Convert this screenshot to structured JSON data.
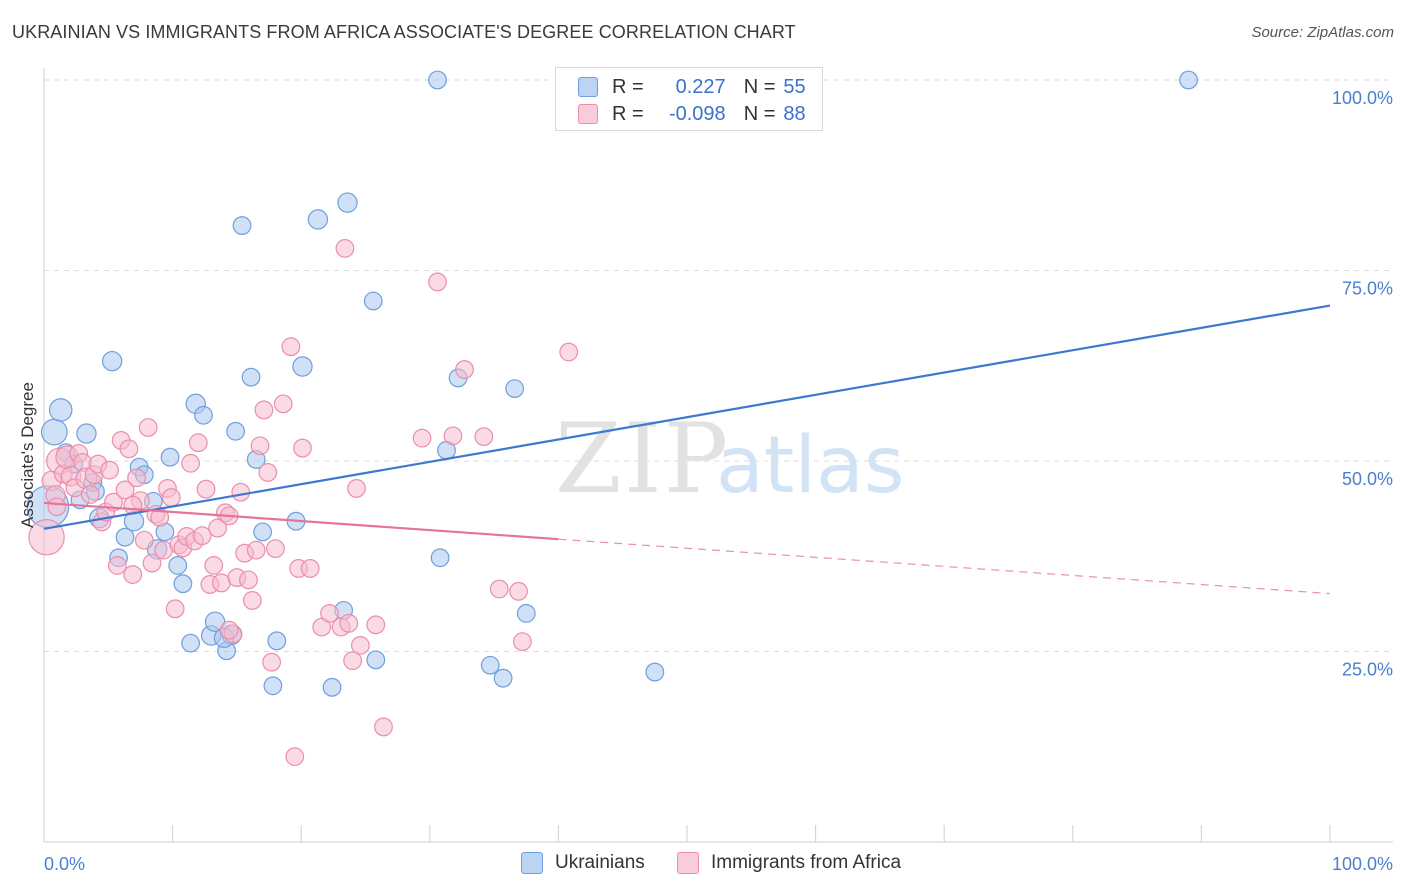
{
  "header": {
    "title": "UKRAINIAN VS IMMIGRANTS FROM AFRICA ASSOCIATE'S DEGREE CORRELATION CHART",
    "source": "Source: ZipAtlas.com"
  },
  "watermark": {
    "zip": "ZIP",
    "atlas": "atlas"
  },
  "colors": {
    "blue_fill": "#a9c7ee",
    "blue_stroke": "#6f9fdc",
    "blue_line": "#3d78cf",
    "pink_fill": "#f6bccd",
    "pink_stroke": "#ea8fab",
    "pink_line": "#e5739b",
    "axis_label": "#4a7fcf",
    "grid": "#dcdcdc"
  },
  "legend": {
    "r_label": "R =",
    "n_label": "N =",
    "rows": [
      {
        "r": "0.227",
        "n": "55"
      },
      {
        "r": "-0.098",
        "n": "88"
      }
    ]
  },
  "chart_data": {
    "type": "scatter",
    "title": "UKRAINIAN VS IMMIGRANTS FROM AFRICA ASSOCIATE'S DEGREE CORRELATION CHART",
    "xlabel": "",
    "ylabel": "Associate's Degree",
    "xlim": [
      0,
      100
    ],
    "ylim": [
      0,
      100
    ],
    "x_tick_labels": [
      "0.0%",
      "100.0%"
    ],
    "y_ticks": [
      25,
      50,
      75,
      100
    ],
    "y_tick_labels": [
      "25.0%",
      "50.0%",
      "75.0%",
      "100.0%"
    ],
    "grid": true,
    "series": [
      {
        "name": "Ukrainians",
        "r": 0.227,
        "n": 55,
        "trend": {
          "x": [
            0,
            100
          ],
          "y": [
            41.1,
            70.4
          ],
          "dashed_from": null
        },
        "points": [
          [
            0.3,
            44.0,
            2.6
          ],
          [
            0.8,
            53.8,
            1.6
          ],
          [
            1.3,
            56.7,
            1.4
          ],
          [
            1.7,
            51.1,
            1.1
          ],
          [
            2.3,
            49.6,
            1.1
          ],
          [
            2.8,
            44.9,
            1.1
          ],
          [
            3.3,
            53.6,
            1.2
          ],
          [
            3.8,
            47.2,
            1.1
          ],
          [
            4.3,
            42.5,
            1.2
          ],
          [
            5.3,
            63.1,
            1.2
          ],
          [
            5.8,
            37.3,
            1.1
          ],
          [
            6.3,
            40.0,
            1.1
          ],
          [
            7.0,
            42.1,
            1.2
          ],
          [
            7.4,
            49.2,
            1.1
          ],
          [
            7.8,
            48.2,
            1.1
          ],
          [
            8.5,
            44.7,
            1.1
          ],
          [
            8.8,
            38.4,
            1.2
          ],
          [
            9.4,
            40.7,
            1.1
          ],
          [
            9.8,
            50.5,
            1.1
          ],
          [
            10.4,
            36.3,
            1.1
          ],
          [
            10.8,
            33.9,
            1.1
          ],
          [
            11.4,
            26.1,
            1.1
          ],
          [
            11.8,
            57.5,
            1.2
          ],
          [
            12.4,
            56.0,
            1.1
          ],
          [
            13.0,
            27.1,
            1.2
          ],
          [
            13.3,
            28.9,
            1.2
          ],
          [
            14.2,
            25.1,
            1.1
          ],
          [
            14.6,
            27.2,
            1.2
          ],
          [
            14.9,
            53.9,
            1.1
          ],
          [
            15.4,
            80.9,
            1.1
          ],
          [
            16.1,
            61.0,
            1.1
          ],
          [
            16.5,
            50.2,
            1.1
          ],
          [
            17.0,
            40.7,
            1.1
          ],
          [
            17.8,
            20.5,
            1.1
          ],
          [
            18.1,
            26.4,
            1.1
          ],
          [
            19.6,
            42.1,
            1.1
          ],
          [
            20.1,
            62.4,
            1.2
          ],
          [
            21.3,
            81.7,
            1.2
          ],
          [
            22.4,
            20.3,
            1.1
          ],
          [
            23.3,
            30.4,
            1.1
          ],
          [
            23.6,
            83.9,
            1.2
          ],
          [
            25.6,
            71.0,
            1.1
          ],
          [
            25.8,
            23.9,
            1.1
          ],
          [
            30.6,
            100.0,
            1.1
          ],
          [
            30.8,
            37.3,
            1.1
          ],
          [
            31.3,
            51.4,
            1.1
          ],
          [
            32.2,
            60.9,
            1.1
          ],
          [
            34.7,
            23.2,
            1.1
          ],
          [
            35.7,
            21.5,
            1.1
          ],
          [
            36.6,
            59.5,
            1.1
          ],
          [
            37.5,
            30.0,
            1.1
          ],
          [
            47.5,
            22.3,
            1.1
          ],
          [
            89.0,
            100.0,
            1.1
          ],
          [
            14.0,
            26.8,
            1.2
          ],
          [
            4.0,
            46.0,
            1.1
          ]
        ]
      },
      {
        "name": "Immigrants from Africa",
        "r": -0.098,
        "n": 88,
        "trend": {
          "x": [
            0,
            100
          ],
          "y": [
            44.5,
            32.6
          ],
          "dashed_from": 40
        },
        "points": [
          [
            0.2,
            40.0,
            2.2
          ],
          [
            0.6,
            47.4,
            1.2
          ],
          [
            0.9,
            45.5,
            1.2
          ],
          [
            1.2,
            50.0,
            1.6
          ],
          [
            1.5,
            48.3,
            1.1
          ],
          [
            1.8,
            50.5,
            1.4
          ],
          [
            2.1,
            48.0,
            1.2
          ],
          [
            2.4,
            46.5,
            1.1
          ],
          [
            2.7,
            51.0,
            1.1
          ],
          [
            3.0,
            49.8,
            1.1
          ],
          [
            3.3,
            47.7,
            1.3
          ],
          [
            3.6,
            45.6,
            1.1
          ],
          [
            3.9,
            48.2,
            1.1
          ],
          [
            4.2,
            49.6,
            1.1
          ],
          [
            4.5,
            42.0,
            1.1
          ],
          [
            4.8,
            43.3,
            1.1
          ],
          [
            5.1,
            48.8,
            1.1
          ],
          [
            5.4,
            44.6,
            1.1
          ],
          [
            5.7,
            36.3,
            1.1
          ],
          [
            6.0,
            52.7,
            1.1
          ],
          [
            6.3,
            46.2,
            1.1
          ],
          [
            6.6,
            51.6,
            1.1
          ],
          [
            6.9,
            35.1,
            1.1
          ],
          [
            7.2,
            47.8,
            1.1
          ],
          [
            7.5,
            44.8,
            1.1
          ],
          [
            7.8,
            39.6,
            1.1
          ],
          [
            8.1,
            54.4,
            1.1
          ],
          [
            8.4,
            36.6,
            1.1
          ],
          [
            8.7,
            43.0,
            1.1
          ],
          [
            9.0,
            42.6,
            1.1
          ],
          [
            9.3,
            38.3,
            1.1
          ],
          [
            9.6,
            46.4,
            1.1
          ],
          [
            9.9,
            45.2,
            1.1
          ],
          [
            10.2,
            30.6,
            1.1
          ],
          [
            10.5,
            39.0,
            1.1
          ],
          [
            10.8,
            38.6,
            1.1
          ],
          [
            11.1,
            40.1,
            1.1
          ],
          [
            11.4,
            49.7,
            1.1
          ],
          [
            11.7,
            39.5,
            1.1
          ],
          [
            12.0,
            52.4,
            1.1
          ],
          [
            12.3,
            40.2,
            1.1
          ],
          [
            12.6,
            46.3,
            1.1
          ],
          [
            12.9,
            33.8,
            1.1
          ],
          [
            13.2,
            36.3,
            1.1
          ],
          [
            13.5,
            41.2,
            1.1
          ],
          [
            13.8,
            34.0,
            1.1
          ],
          [
            14.1,
            43.2,
            1.1
          ],
          [
            14.4,
            42.8,
            1.1
          ],
          [
            14.7,
            27.3,
            1.1
          ],
          [
            15.0,
            34.7,
            1.1
          ],
          [
            15.3,
            45.9,
            1.1
          ],
          [
            15.6,
            37.9,
            1.1
          ],
          [
            15.9,
            34.4,
            1.1
          ],
          [
            16.2,
            31.7,
            1.1
          ],
          [
            16.5,
            38.3,
            1.1
          ],
          [
            16.8,
            52.0,
            1.1
          ],
          [
            17.1,
            56.7,
            1.1
          ],
          [
            17.4,
            48.5,
            1.1
          ],
          [
            17.7,
            23.6,
            1.1
          ],
          [
            18.0,
            38.5,
            1.1
          ],
          [
            18.6,
            57.5,
            1.1
          ],
          [
            19.2,
            65.0,
            1.1
          ],
          [
            19.5,
            11.2,
            1.1
          ],
          [
            19.8,
            35.9,
            1.1
          ],
          [
            20.1,
            51.7,
            1.1
          ],
          [
            20.7,
            35.9,
            1.1
          ],
          [
            21.6,
            28.2,
            1.1
          ],
          [
            22.2,
            30.0,
            1.1
          ],
          [
            23.1,
            28.2,
            1.1
          ],
          [
            23.4,
            77.9,
            1.1
          ],
          [
            23.7,
            28.7,
            1.1
          ],
          [
            24.0,
            23.8,
            1.1
          ],
          [
            24.3,
            46.4,
            1.1
          ],
          [
            24.6,
            25.8,
            1.1
          ],
          [
            25.8,
            28.5,
            1.1
          ],
          [
            26.4,
            15.1,
            1.1
          ],
          [
            29.4,
            53.0,
            1.1
          ],
          [
            30.6,
            73.5,
            1.1
          ],
          [
            31.8,
            53.3,
            1.1
          ],
          [
            32.7,
            62.0,
            1.1
          ],
          [
            34.2,
            53.2,
            1.1
          ],
          [
            35.4,
            33.2,
            1.1
          ],
          [
            36.9,
            32.9,
            1.1
          ],
          [
            37.2,
            26.3,
            1.1
          ],
          [
            40.8,
            64.3,
            1.1
          ],
          [
            14.4,
            27.8,
            1.1
          ],
          [
            6.9,
            44.2,
            1.1
          ],
          [
            1.0,
            44.0,
            1.1
          ]
        ]
      }
    ]
  }
}
